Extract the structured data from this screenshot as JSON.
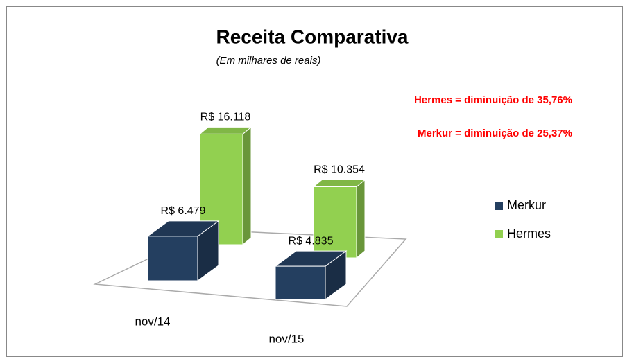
{
  "chart_data": {
    "type": "bar",
    "title": "Receita Comparativa",
    "subtitle": "(Em milhares de reais)",
    "annotations": [
      "Hermes = diminuição de  35,76%",
      "Merkur =  diminuição de 25,37%"
    ],
    "categories": [
      "nov/14",
      "nov/15"
    ],
    "series": [
      {
        "name": "Merkur",
        "color": "#243f60",
        "values": [
          6479,
          4835
        ],
        "value_labels": [
          "R$ 6.479",
          "R$ 4.835"
        ]
      },
      {
        "name": "Hermes",
        "color": "#92d050",
        "values": [
          16118,
          10354
        ],
        "value_labels": [
          "R$ 16.118",
          "R$ 10.354"
        ]
      }
    ],
    "legend": "right"
  }
}
